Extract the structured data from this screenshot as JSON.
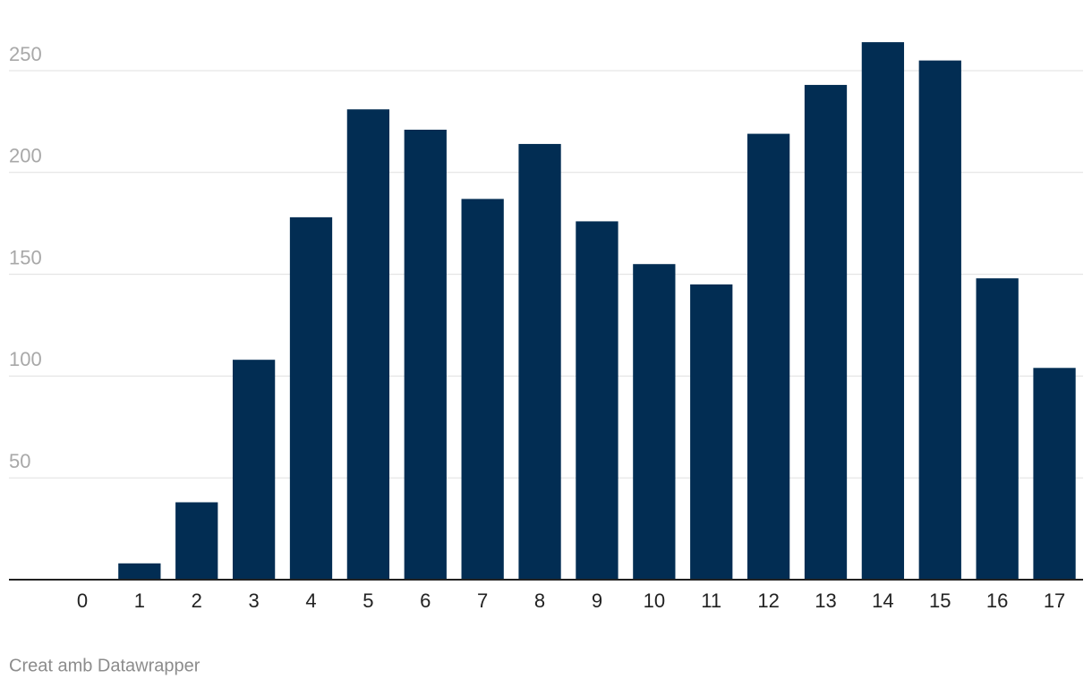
{
  "chart_data": {
    "type": "bar",
    "categories": [
      "0",
      "1",
      "2",
      "3",
      "4",
      "5",
      "6",
      "7",
      "8",
      "9",
      "10",
      "11",
      "12",
      "13",
      "14",
      "15",
      "16",
      "17"
    ],
    "values": [
      0,
      8,
      38,
      108,
      178,
      231,
      221,
      187,
      214,
      176,
      155,
      145,
      219,
      243,
      264,
      255,
      148,
      104
    ],
    "color": "#022d53",
    "ylim": [
      0,
      270
    ],
    "yticks": [
      50,
      100,
      150,
      200,
      250
    ],
    "grid": true,
    "credit": "Creat amb Datawrapper"
  }
}
